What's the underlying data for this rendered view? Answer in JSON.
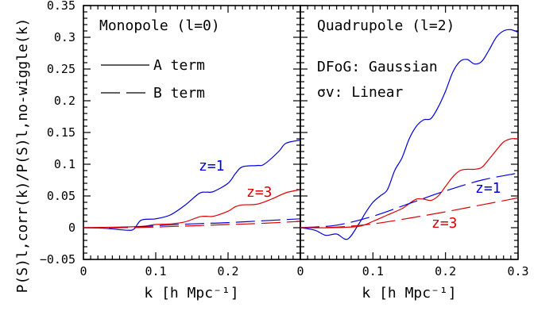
{
  "chart_data": [
    {
      "type": "line",
      "title": "Monopole (l=0)",
      "xlabel": "k [h Mpc⁻¹]",
      "ylabel": "P(S)l,corr(k)/P(S)l,no-wiggle(k)",
      "xlim": [
        0,
        0.3
      ],
      "ylim": [
        -0.05,
        0.35
      ],
      "x_ticks": [
        "0",
        "0.1",
        "0.2"
      ],
      "y_ticks": [
        "−0.05",
        "0",
        "0.05",
        "0.1",
        "0.15",
        "0.2",
        "0.25",
        "0.3",
        "0.35"
      ],
      "legend": [
        {
          "label": "A term",
          "style": "solid"
        },
        {
          "label": "B term",
          "style": "dashed"
        }
      ],
      "annotations": [
        {
          "text": "z=1",
          "color": "#0000dd"
        },
        {
          "text": "z=3",
          "color": "#dd0000"
        }
      ],
      "series": [
        {
          "z": "z=1",
          "term": "A",
          "color": "#0000dd",
          "dash": "solid",
          "x": [
            0,
            0.03,
            0.06,
            0.07,
            0.08,
            0.1,
            0.12,
            0.14,
            0.16,
            0.17,
            0.18,
            0.2,
            0.21,
            0.22,
            0.24,
            0.25,
            0.27,
            0.28,
            0.3
          ],
          "y": [
            0,
            -0.001,
            -0.004,
            -0.002,
            0.012,
            0.014,
            0.02,
            0.035,
            0.054,
            0.056,
            0.057,
            0.07,
            0.085,
            0.096,
            0.098,
            0.1,
            0.12,
            0.133,
            0.138
          ]
        },
        {
          "z": "z=3",
          "term": "A",
          "color": "#dd0000",
          "dash": "solid",
          "x": [
            0,
            0.05,
            0.08,
            0.1,
            0.12,
            0.14,
            0.16,
            0.17,
            0.18,
            0.2,
            0.21,
            0.22,
            0.24,
            0.26,
            0.28,
            0.3
          ],
          "y": [
            0,
            0.001,
            0.002,
            0.005,
            0.006,
            0.009,
            0.017,
            0.018,
            0.018,
            0.026,
            0.033,
            0.036,
            0.037,
            0.045,
            0.055,
            0.06
          ]
        },
        {
          "z": "z=1",
          "term": "B",
          "color": "#0000dd",
          "dash": "dashed",
          "x": [
            0,
            0.05,
            0.1,
            0.15,
            0.2,
            0.25,
            0.3
          ],
          "y": [
            0,
            0,
            0.003,
            0.006,
            0.008,
            0.011,
            0.014
          ]
        },
        {
          "z": "z=3",
          "term": "B",
          "color": "#dd0000",
          "dash": "dashed",
          "x": [
            0,
            0.05,
            0.1,
            0.15,
            0.2,
            0.25,
            0.3
          ],
          "y": [
            0,
            0,
            0.001,
            0.003,
            0.005,
            0.007,
            0.01
          ]
        }
      ]
    },
    {
      "type": "line",
      "title": "Quadrupole (l=2)",
      "xlabel": "k [h Mpc⁻¹]",
      "xlim": [
        0,
        0.3
      ],
      "ylim": [
        -0.05,
        0.35
      ],
      "x_ticks": [
        "0",
        "0.1",
        "0.2",
        "0.3"
      ],
      "notes": [
        "DFoG: Gaussian",
        "σv: Linear"
      ],
      "annotations": [
        {
          "text": "z=1",
          "color": "#0000dd"
        },
        {
          "text": "z=3",
          "color": "#dd0000"
        }
      ],
      "series": [
        {
          "z": "z=1",
          "term": "A",
          "color": "#0000dd",
          "dash": "solid",
          "x": [
            0,
            0.02,
            0.035,
            0.05,
            0.065,
            0.08,
            0.09,
            0.1,
            0.11,
            0.12,
            0.13,
            0.14,
            0.15,
            0.16,
            0.17,
            0.18,
            0.19,
            0.2,
            0.21,
            0.22,
            0.23,
            0.24,
            0.25,
            0.26,
            0.27,
            0.28,
            0.29,
            0.3
          ],
          "y": [
            0,
            -0.004,
            -0.012,
            -0.01,
            -0.018,
            0.005,
            0.024,
            0.04,
            0.05,
            0.06,
            0.09,
            0.11,
            0.14,
            0.16,
            0.17,
            0.172,
            0.19,
            0.215,
            0.245,
            0.262,
            0.265,
            0.258,
            0.262,
            0.28,
            0.3,
            0.31,
            0.312,
            0.308
          ]
        },
        {
          "z": "z=3",
          "term": "A",
          "color": "#dd0000",
          "dash": "solid",
          "x": [
            0,
            0.04,
            0.08,
            0.1,
            0.12,
            0.14,
            0.15,
            0.16,
            0.17,
            0.18,
            0.19,
            0.2,
            0.21,
            0.22,
            0.23,
            0.24,
            0.25,
            0.26,
            0.27,
            0.28,
            0.29,
            0.3
          ],
          "y": [
            0,
            0,
            0.002,
            0.01,
            0.02,
            0.03,
            0.038,
            0.045,
            0.045,
            0.043,
            0.05,
            0.065,
            0.08,
            0.09,
            0.092,
            0.092,
            0.095,
            0.108,
            0.122,
            0.135,
            0.14,
            0.14
          ]
        },
        {
          "z": "z=1",
          "term": "B",
          "color": "#0000dd",
          "dash": "dashed",
          "x": [
            0,
            0.05,
            0.1,
            0.15,
            0.2,
            0.25,
            0.3
          ],
          "y": [
            0,
            0.004,
            0.018,
            0.038,
            0.058,
            0.075,
            0.086
          ]
        },
        {
          "z": "z=3",
          "term": "B",
          "color": "#dd0000",
          "dash": "dashed",
          "x": [
            0,
            0.05,
            0.1,
            0.15,
            0.2,
            0.25,
            0.3
          ],
          "y": [
            0,
            0.001,
            0.006,
            0.015,
            0.025,
            0.036,
            0.047
          ]
        }
      ]
    }
  ]
}
